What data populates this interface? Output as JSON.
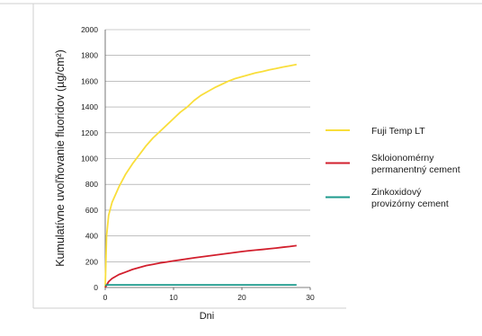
{
  "chart_data": {
    "type": "line",
    "title": "",
    "xlabel": "Dni",
    "ylabel": "Kumulatívne uvoľňovanie fluoridov (µg/cm²)",
    "xlim": [
      0,
      30
    ],
    "ylim": [
      0,
      2000
    ],
    "x_ticks": [
      0,
      10,
      20,
      30
    ],
    "y_ticks": [
      0,
      200,
      400,
      600,
      800,
      1000,
      1200,
      1400,
      1600,
      1800,
      2000
    ],
    "grid": "horizontal",
    "legend_position": "right",
    "series": [
      {
        "name": "Fuji Temp LT",
        "color": "#f9de3b",
        "legend_lines": [
          "Fuji Temp LT"
        ],
        "points": [
          [
            0,
            0
          ],
          [
            0.2,
            400
          ],
          [
            0.5,
            560
          ],
          [
            1,
            660
          ],
          [
            2,
            780
          ],
          [
            3,
            880
          ],
          [
            4,
            960
          ],
          [
            5,
            1030
          ],
          [
            6,
            1100
          ],
          [
            7,
            1160
          ],
          [
            8,
            1210
          ],
          [
            9,
            1260
          ],
          [
            10,
            1310
          ],
          [
            11,
            1360
          ],
          [
            12,
            1400
          ],
          [
            13,
            1450
          ],
          [
            14,
            1490
          ],
          [
            15,
            1520
          ],
          [
            16,
            1550
          ],
          [
            17,
            1575
          ],
          [
            18,
            1600
          ],
          [
            19,
            1620
          ],
          [
            20,
            1635
          ],
          [
            21,
            1650
          ],
          [
            22,
            1665
          ],
          [
            23,
            1675
          ],
          [
            24,
            1688
          ],
          [
            25,
            1698
          ],
          [
            26,
            1710
          ],
          [
            27,
            1720
          ],
          [
            28,
            1730
          ]
        ]
      },
      {
        "name": "Skloionomérny permanentný cement",
        "color": "#d21f2d",
        "legend_lines": [
          "Skloionomérny",
          "permanentný cement"
        ],
        "points": [
          [
            0,
            0
          ],
          [
            0.5,
            45
          ],
          [
            1,
            70
          ],
          [
            2,
            100
          ],
          [
            3,
            120
          ],
          [
            4,
            140
          ],
          [
            5,
            155
          ],
          [
            6,
            170
          ],
          [
            7,
            180
          ],
          [
            8,
            190
          ],
          [
            9,
            198
          ],
          [
            10,
            206
          ],
          [
            11,
            214
          ],
          [
            12,
            222
          ],
          [
            13,
            230
          ],
          [
            14,
            237
          ],
          [
            15,
            244
          ],
          [
            16,
            251
          ],
          [
            17,
            258
          ],
          [
            18,
            265
          ],
          [
            19,
            272
          ],
          [
            20,
            279
          ],
          [
            21,
            285
          ],
          [
            22,
            290
          ],
          [
            23,
            295
          ],
          [
            24,
            300
          ],
          [
            25,
            306
          ],
          [
            26,
            312
          ],
          [
            27,
            318
          ],
          [
            28,
            325
          ]
        ]
      },
      {
        "name": "Zinkoxidový provizórny cement",
        "color": "#1c9a8c",
        "legend_lines": [
          "Zinkoxidový",
          "provizórny cement"
        ],
        "points": [
          [
            0,
            15
          ],
          [
            0.3,
            20
          ],
          [
            28,
            20
          ]
        ]
      }
    ]
  }
}
